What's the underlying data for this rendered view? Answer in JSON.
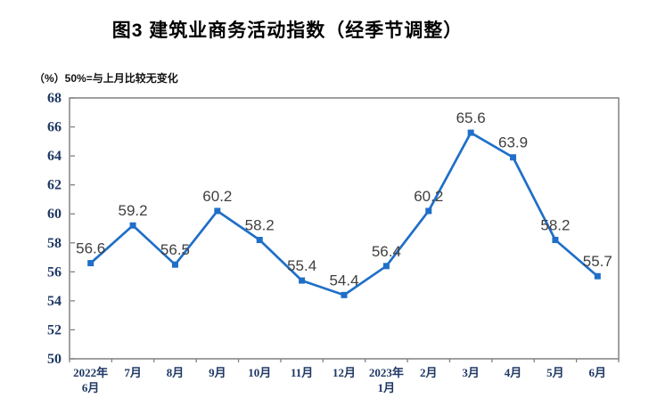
{
  "chart_data": {
    "type": "line",
    "title": "图3 建筑业商务活动指数（经季节调整）",
    "unit_label": "（%）50%=与上月比较无变化",
    "categories": [
      "2022年\n6月",
      "7月",
      "8月",
      "9月",
      "10月",
      "11月",
      "12月",
      "2023年\n1月",
      "2月",
      "3月",
      "4月",
      "5月",
      "6月"
    ],
    "values": [
      56.6,
      59.2,
      56.5,
      60.2,
      58.2,
      55.4,
      54.4,
      56.4,
      60.2,
      65.6,
      63.9,
      58.2,
      55.7
    ],
    "xlabel": "",
    "ylabel": "%",
    "ylim": [
      50,
      68
    ],
    "ytick_step": 2,
    "grid": false,
    "legend": "none",
    "colors": {
      "line": "#1f6fc8",
      "marker": "#1f6fc8",
      "axis_labels": "#1f3864",
      "data_labels": "#3f3f3f",
      "frame": "#808080",
      "title": "#000000"
    }
  }
}
